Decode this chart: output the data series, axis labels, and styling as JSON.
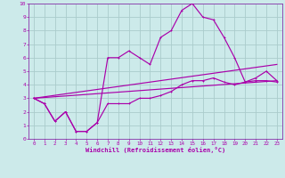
{
  "xlabel": "Windchill (Refroidissement éolien,°C)",
  "bg_color": "#cceaea",
  "grid_color": "#aacccc",
  "line_color": "#aa00aa",
  "spine_color": "#8833aa",
  "xlim": [
    -0.5,
    23.5
  ],
  "ylim": [
    0,
    10
  ],
  "xticks": [
    0,
    1,
    2,
    3,
    4,
    5,
    6,
    7,
    8,
    9,
    10,
    11,
    12,
    13,
    14,
    15,
    16,
    17,
    18,
    19,
    20,
    21,
    22,
    23
  ],
  "yticks": [
    0,
    1,
    2,
    3,
    4,
    5,
    6,
    7,
    8,
    9,
    10
  ],
  "line1_x": [
    0,
    1,
    2,
    3,
    4,
    5,
    6,
    7,
    8,
    9,
    10,
    11,
    12,
    13,
    14,
    15,
    16,
    17,
    18,
    19,
    20,
    21,
    22,
    23
  ],
  "line1_y": [
    3.0,
    2.6,
    1.3,
    2.0,
    0.55,
    0.55,
    1.2,
    6.0,
    6.0,
    6.5,
    6.0,
    5.5,
    7.5,
    8.0,
    9.5,
    10.0,
    9.0,
    8.8,
    7.5,
    6.0,
    4.2,
    4.5,
    5.0,
    4.3
  ],
  "line2_x": [
    0,
    1,
    2,
    3,
    4,
    5,
    6,
    7,
    8,
    9,
    10,
    11,
    12,
    13,
    14,
    15,
    16,
    17,
    18,
    19,
    20,
    21,
    22,
    23
  ],
  "line2_y": [
    3.0,
    2.6,
    1.3,
    2.0,
    0.55,
    0.55,
    1.2,
    2.6,
    2.6,
    2.6,
    3.0,
    3.0,
    3.2,
    3.5,
    4.0,
    4.3,
    4.3,
    4.5,
    4.2,
    4.0,
    4.2,
    4.3,
    4.3,
    4.2
  ],
  "line3_x": [
    0,
    23
  ],
  "line3_y": [
    3.0,
    5.5
  ],
  "line4_x": [
    0,
    23
  ],
  "line4_y": [
    3.0,
    4.3
  ]
}
